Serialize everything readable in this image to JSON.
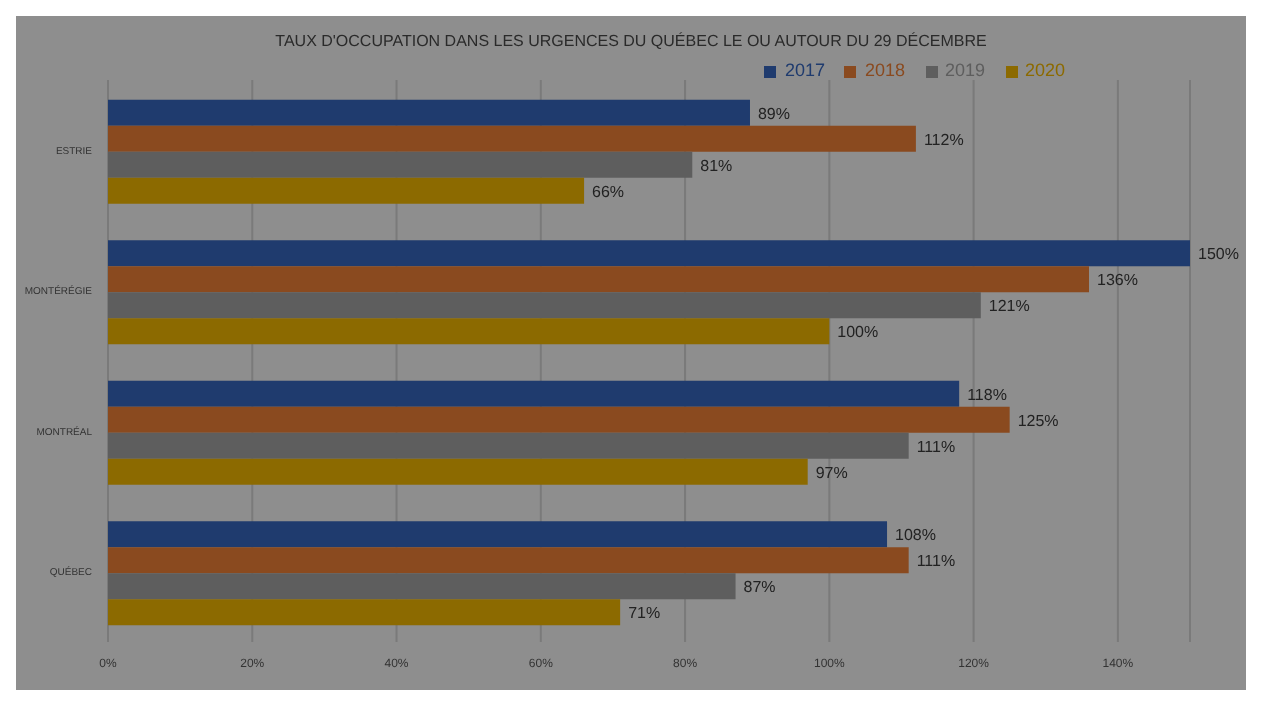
{
  "chart_data": {
    "type": "bar",
    "orientation": "horizontal",
    "title": "TAUX D'OCCUPATION DANS LES URGENCES DU QUÉBEC LE OU AUTOUR DU 29 DÉCEMBRE",
    "categories": [
      "ESTRIE",
      "MONTÉRÉGIE",
      "MONTRÉAL",
      "QUÉBEC"
    ],
    "series": [
      {
        "name": "2017",
        "color": "#1f3b6e",
        "values": [
          89,
          150,
          118,
          108
        ],
        "value_labels": [
          "89%",
          "150%",
          "118%",
          "108%"
        ]
      },
      {
        "name": "2018",
        "color": "#8a4a1f",
        "values": [
          112,
          136,
          125,
          111
        ],
        "value_labels": [
          "112%",
          "136%",
          "125%",
          "111%"
        ]
      },
      {
        "name": "2019",
        "color": "#5e5e5e",
        "values": [
          81,
          121,
          111,
          87
        ],
        "value_labels": [
          "81%",
          "121%",
          "111%",
          "87%"
        ]
      },
      {
        "name": "2020",
        "color": "#8c6a00",
        "values": [
          66,
          100,
          97,
          71
        ],
        "value_labels": [
          "66%",
          "100%",
          "97%",
          "71%"
        ]
      }
    ],
    "xlim": [
      0,
      150
    ],
    "xticks": [
      {
        "value": 0,
        "label": "0%"
      },
      {
        "value": 20,
        "label": "20%"
      },
      {
        "value": 40,
        "label": "40%"
      },
      {
        "value": 60,
        "label": "60%"
      },
      {
        "value": 80,
        "label": "80%"
      },
      {
        "value": 100,
        "label": "100%"
      },
      {
        "value": 120,
        "label": "120%"
      },
      {
        "value": 140,
        "label": "140%"
      }
    ],
    "grid": "x",
    "legend": "top"
  }
}
